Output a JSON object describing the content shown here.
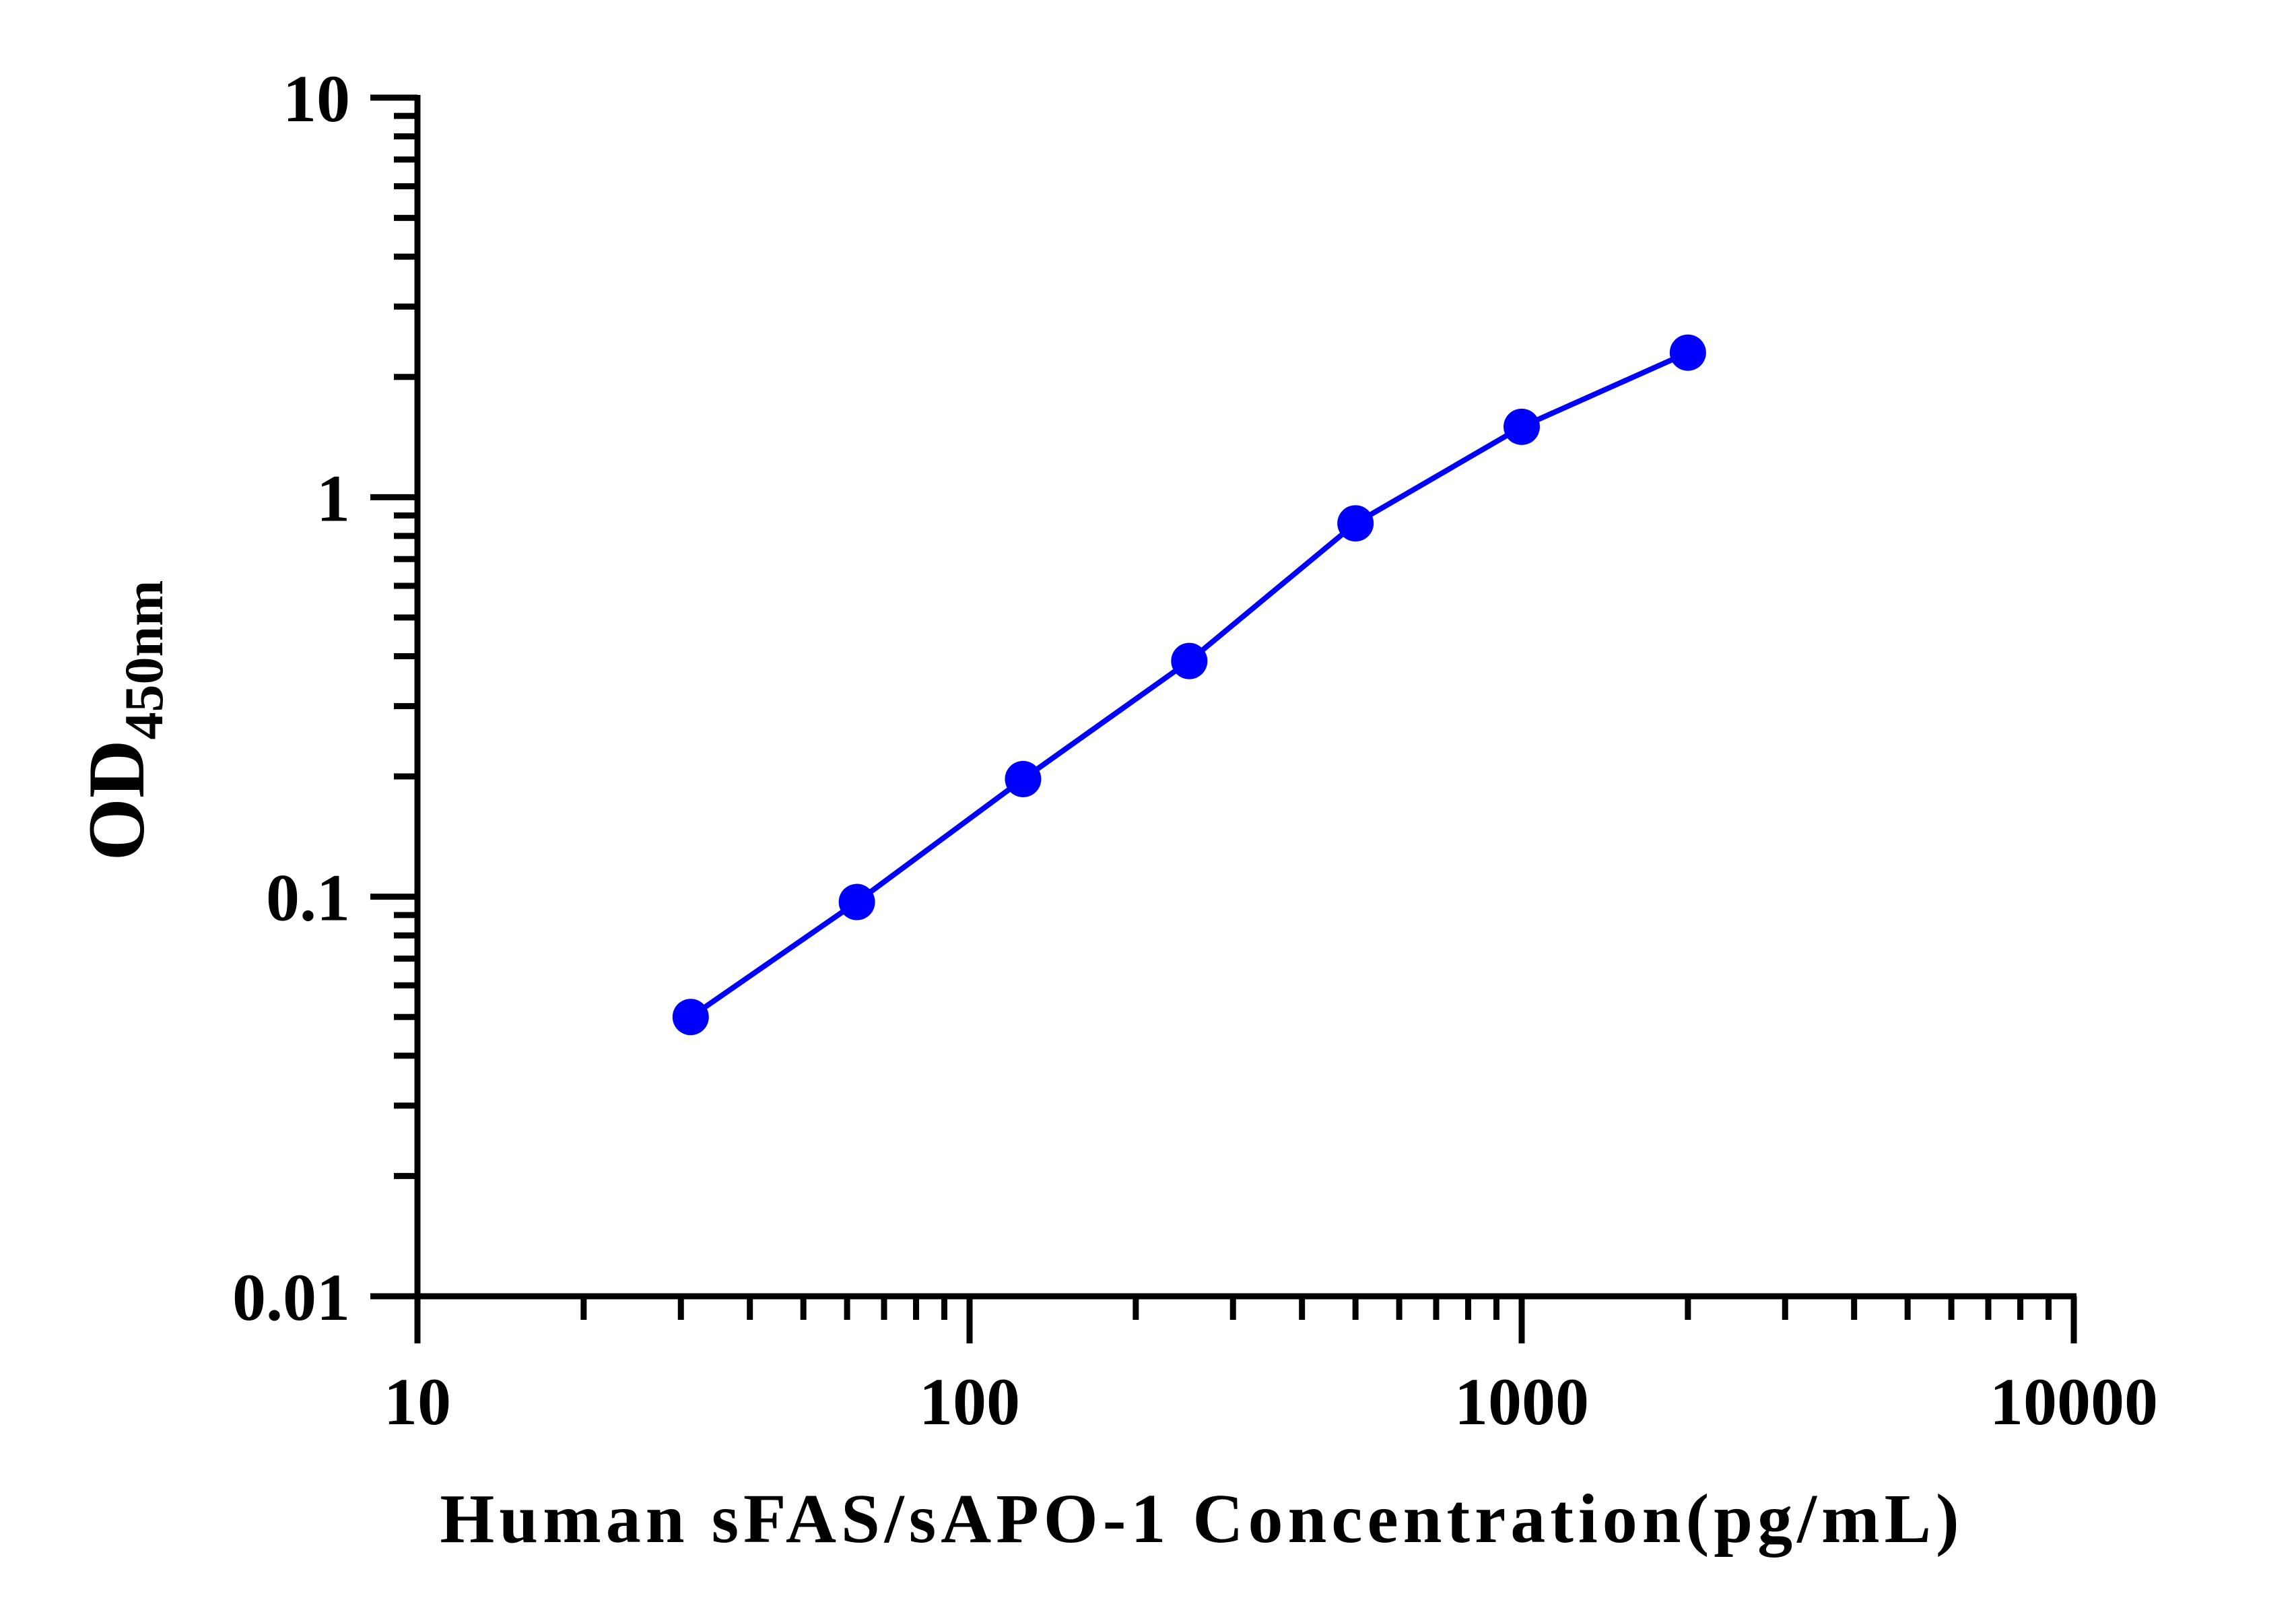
{
  "chart_data": {
    "type": "line",
    "title": "",
    "xlabel": "Human sFAS/sAPO-1 Concentration(pg/mL)",
    "ylabel_main": "OD",
    "ylabel_sub": "450nm",
    "xscale": "log",
    "yscale": "log",
    "xlim": [
      10,
      10000
    ],
    "ylim": [
      0.01,
      10
    ],
    "x_ticks": [
      "10",
      "100",
      "1000",
      "10000"
    ],
    "y_ticks": [
      "0.01",
      "0.1",
      "1",
      "10"
    ],
    "grid": false,
    "legend": "none",
    "series": [
      {
        "color": "#0000ff",
        "x": [
          31.25,
          62.5,
          125,
          250,
          500,
          1000,
          2000
        ],
        "y": [
          0.05,
          0.097,
          0.197,
          0.389,
          0.86,
          1.5,
          2.3
        ]
      }
    ]
  }
}
